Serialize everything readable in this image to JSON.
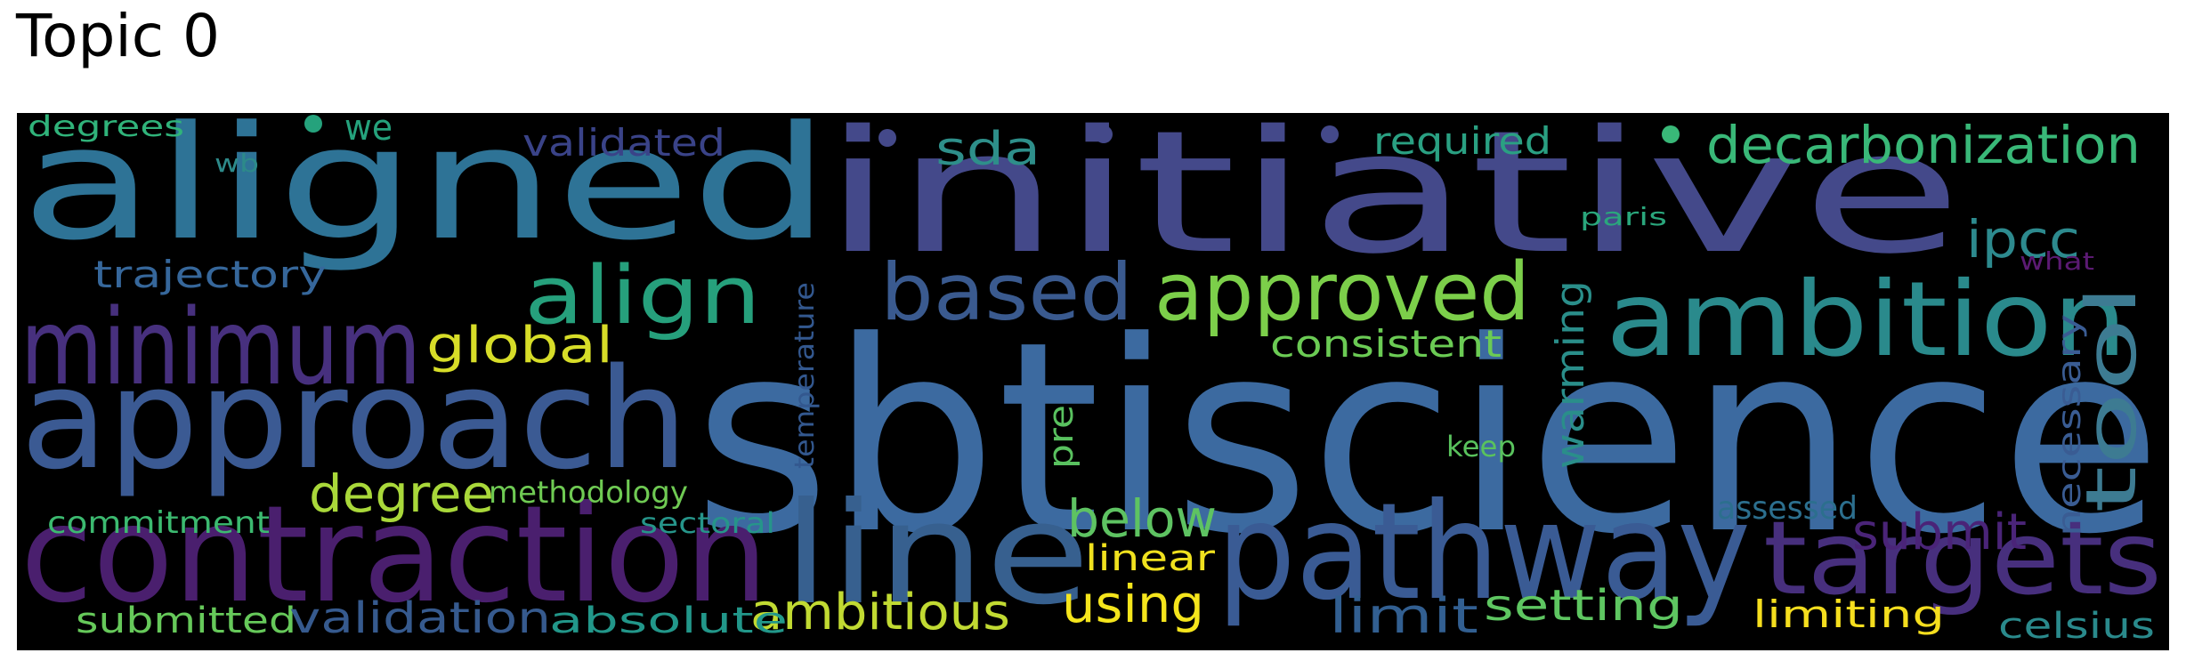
{
  "title": "Topic 0",
  "words": [
    {
      "text": "sbtiscience",
      "color": "#3c6aa0"
    },
    {
      "text": "initiative",
      "color": "#44498a"
    },
    {
      "text": "aligned",
      "color": "#2e7396"
    },
    {
      "text": "approach",
      "color": "#3b5a93"
    },
    {
      "text": "contraction",
      "color": "#4a1f6e"
    },
    {
      "text": "line",
      "color": "#37608f"
    },
    {
      "text": "pathway",
      "color": "#3a5b94"
    },
    {
      "text": "ambition",
      "color": "#2a8a8c"
    },
    {
      "text": "targets",
      "color": "#472f7d"
    },
    {
      "text": "minimum",
      "color": "#47307e"
    },
    {
      "text": "approved",
      "color": "#7ccf4a"
    },
    {
      "text": "based",
      "color": "#3a5a8f"
    },
    {
      "text": "align",
      "color": "#26a07c"
    },
    {
      "text": "tool",
      "color": "#3d7b92"
    },
    {
      "text": "decarbonization",
      "color": "#39b878"
    },
    {
      "text": "ipcc",
      "color": "#2d8a8e"
    },
    {
      "text": "sda",
      "color": "#2e8f8a"
    },
    {
      "text": "required",
      "color": "#2aa082"
    },
    {
      "text": "validated",
      "color": "#3a4388"
    },
    {
      "text": "we",
      "color": "#25a27c"
    },
    {
      "text": "degrees",
      "color": "#30b37a"
    },
    {
      "text": "wb",
      "color": "#2d8a8a"
    },
    {
      "text": "trajectory",
      "color": "#36679b"
    },
    {
      "text": "global",
      "color": "#d7dd28"
    },
    {
      "text": "consistent",
      "color": "#6bcb54"
    },
    {
      "text": "paris",
      "color": "#2aa67c"
    },
    {
      "text": "what",
      "color": "#5b1a72"
    },
    {
      "text": "temperature",
      "color": "#33588f"
    },
    {
      "text": "warming",
      "color": "#2a8e8a"
    },
    {
      "text": "necessary",
      "color": "#3a5c93"
    },
    {
      "text": "pre",
      "color": "#59c15f"
    },
    {
      "text": "keep",
      "color": "#59c25d"
    },
    {
      "text": "degree",
      "color": "#a9d83a"
    },
    {
      "text": "methodology",
      "color": "#6fca53"
    },
    {
      "text": "commitment",
      "color": "#3cba70"
    },
    {
      "text": "sectoral",
      "color": "#26958a"
    },
    {
      "text": "below",
      "color": "#5ec362"
    },
    {
      "text": "linear",
      "color": "#f0e11e"
    },
    {
      "text": "assessed",
      "color": "#2c6f8e"
    },
    {
      "text": "submit",
      "color": "#4a2478"
    },
    {
      "text": "using",
      "color": "#f5e51c"
    },
    {
      "text": "ambitious",
      "color": "#c1da32"
    },
    {
      "text": "submitted",
      "color": "#66c95a"
    },
    {
      "text": "validation",
      "color": "#365a8e"
    },
    {
      "text": "absolute",
      "color": "#22978a"
    },
    {
      "text": "limit",
      "color": "#325f91"
    },
    {
      "text": "setting",
      "color": "#5ec661"
    },
    {
      "text": "limiting",
      "color": "#f5de1e"
    },
    {
      "text": "celsius",
      "color": "#2a8a8c"
    }
  ]
}
